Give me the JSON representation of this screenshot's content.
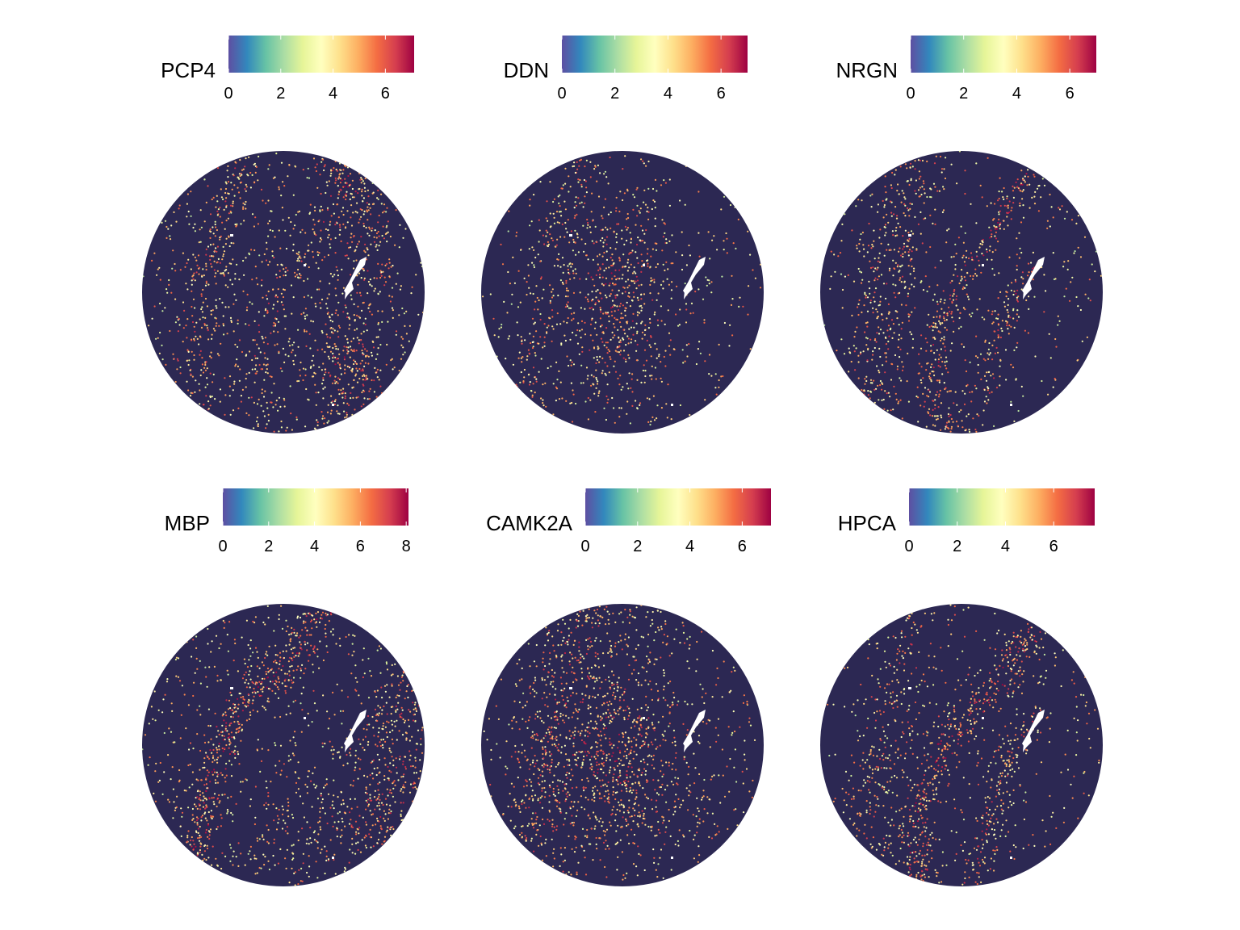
{
  "figure": {
    "layout": "2 rows x 3 columns of spatial feature plots"
  },
  "chart_data": [
    {
      "type": "heatmap",
      "title": "PCP4",
      "legend_title": "PCP4",
      "colorscale": "Spectral (reversed)",
      "legend_range": [
        0,
        7.1
      ],
      "ticks": [
        0,
        2,
        4,
        6
      ],
      "pattern": "pcp4"
    },
    {
      "type": "heatmap",
      "title": "DDN",
      "legend_title": "DDN",
      "colorscale": "Spectral (reversed)",
      "legend_range": [
        0,
        7.0
      ],
      "ticks": [
        0,
        2,
        4,
        6
      ],
      "pattern": "ddn"
    },
    {
      "type": "heatmap",
      "title": "NRGN",
      "legend_title": "NRGN",
      "colorscale": "Spectral (reversed)",
      "legend_range": [
        0,
        7.0
      ],
      "ticks": [
        0,
        2,
        4,
        6
      ],
      "pattern": "nrgn"
    },
    {
      "type": "heatmap",
      "title": "MBP",
      "legend_title": "MBP",
      "colorscale": "Spectral (reversed)",
      "legend_range": [
        0,
        8.1
      ],
      "ticks": [
        0,
        2,
        4,
        6,
        8
      ],
      "pattern": "mbp"
    },
    {
      "type": "heatmap",
      "title": "CAMK2A",
      "legend_title": "CAMK2A",
      "colorscale": "Spectral (reversed)",
      "legend_range": [
        0,
        7.1
      ],
      "ticks": [
        0,
        2,
        4,
        6
      ],
      "pattern": "camk2a"
    },
    {
      "type": "heatmap",
      "title": "HPCA",
      "legend_title": "HPCA",
      "colorscale": "Spectral (reversed)",
      "legend_range": [
        0,
        7.7
      ],
      "ticks": [
        0,
        2,
        4,
        6
      ],
      "pattern": "hpca"
    }
  ],
  "colors": {
    "background_tissue": "#2c2853",
    "spectral_stops": [
      "#5e4fa2",
      "#3288bd",
      "#66c2a5",
      "#abdda4",
      "#e6f598",
      "#ffffbf",
      "#fee08b",
      "#fdae61",
      "#f46d43",
      "#d53e4f",
      "#9e0142"
    ]
  }
}
